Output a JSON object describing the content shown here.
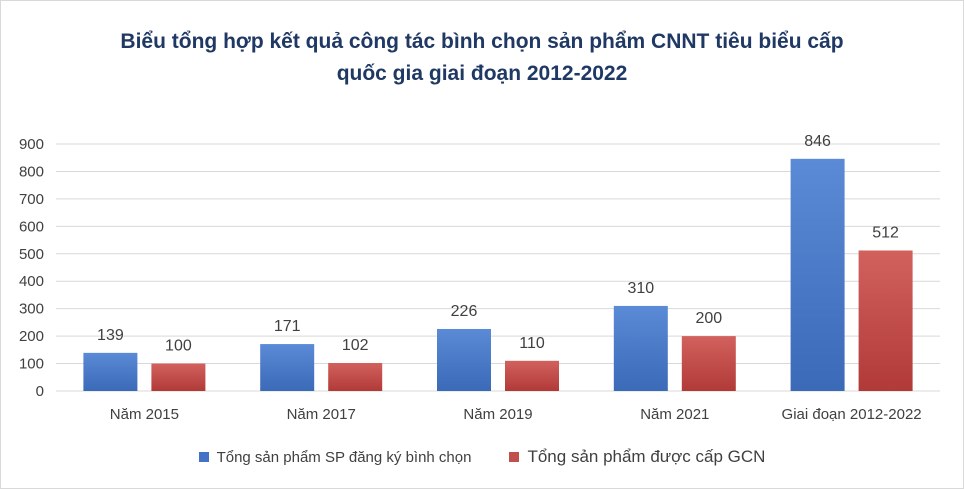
{
  "chart_data": {
    "type": "bar",
    "title_lines": [
      "Biểu tổng hợp kết quả công tác bình chọn sản phẩm CNNT tiêu biểu cấp",
      "quốc gia giai đoạn 2012-2022"
    ],
    "categories": [
      "Năm 2015",
      "Năm 2017",
      "Năm 2019",
      "Năm 2021",
      "Giai đoạn 2012-2022"
    ],
    "series": [
      {
        "name": "Tổng sản phẩm SP đăng ký bình chọn",
        "values": [
          139,
          171,
          226,
          310,
          846
        ],
        "color": "#4472c4"
      },
      {
        "name": "Tổng sản phẩm được cấp GCN",
        "values": [
          100,
          102,
          110,
          200,
          512
        ],
        "color": "#c0504d"
      }
    ],
    "y_ticks": [
      0,
      100,
      200,
      300,
      400,
      500,
      600,
      700,
      800,
      900
    ],
    "ylim": [
      0,
      900
    ],
    "grid": true,
    "legend_position": "bottom"
  }
}
